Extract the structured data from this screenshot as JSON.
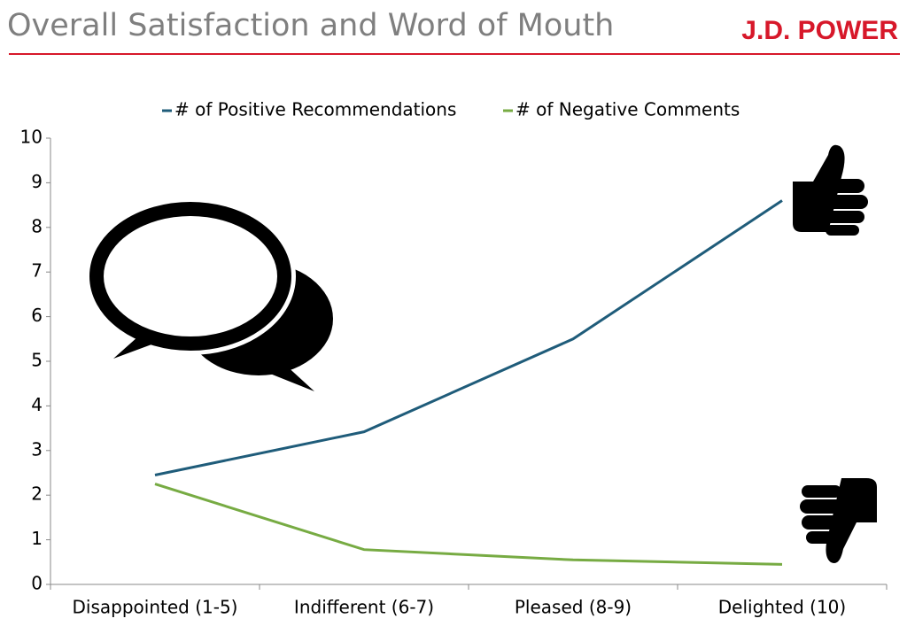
{
  "logo": "J.D. POWER",
  "chart_data": {
    "type": "line",
    "title": "Overall Satisfaction and Word of Mouth",
    "categories": [
      "Disappointed (1-5)",
      "Indifferent (6-7)",
      "Pleased (8-9)",
      "Delighted (10)"
    ],
    "series": [
      {
        "name": "# of Positive Recommendations",
        "color": "#1f5c7a",
        "values": [
          2.45,
          3.42,
          5.5,
          8.6
        ]
      },
      {
        "name": "# of Negative Comments",
        "color": "#77ab43",
        "values": [
          2.25,
          0.78,
          0.55,
          0.45
        ]
      }
    ],
    "ylim": [
      0,
      10
    ],
    "yticks": [
      0,
      1,
      2,
      3,
      4,
      5,
      6,
      7,
      8,
      9,
      10
    ],
    "grid": false,
    "legend": "top"
  }
}
